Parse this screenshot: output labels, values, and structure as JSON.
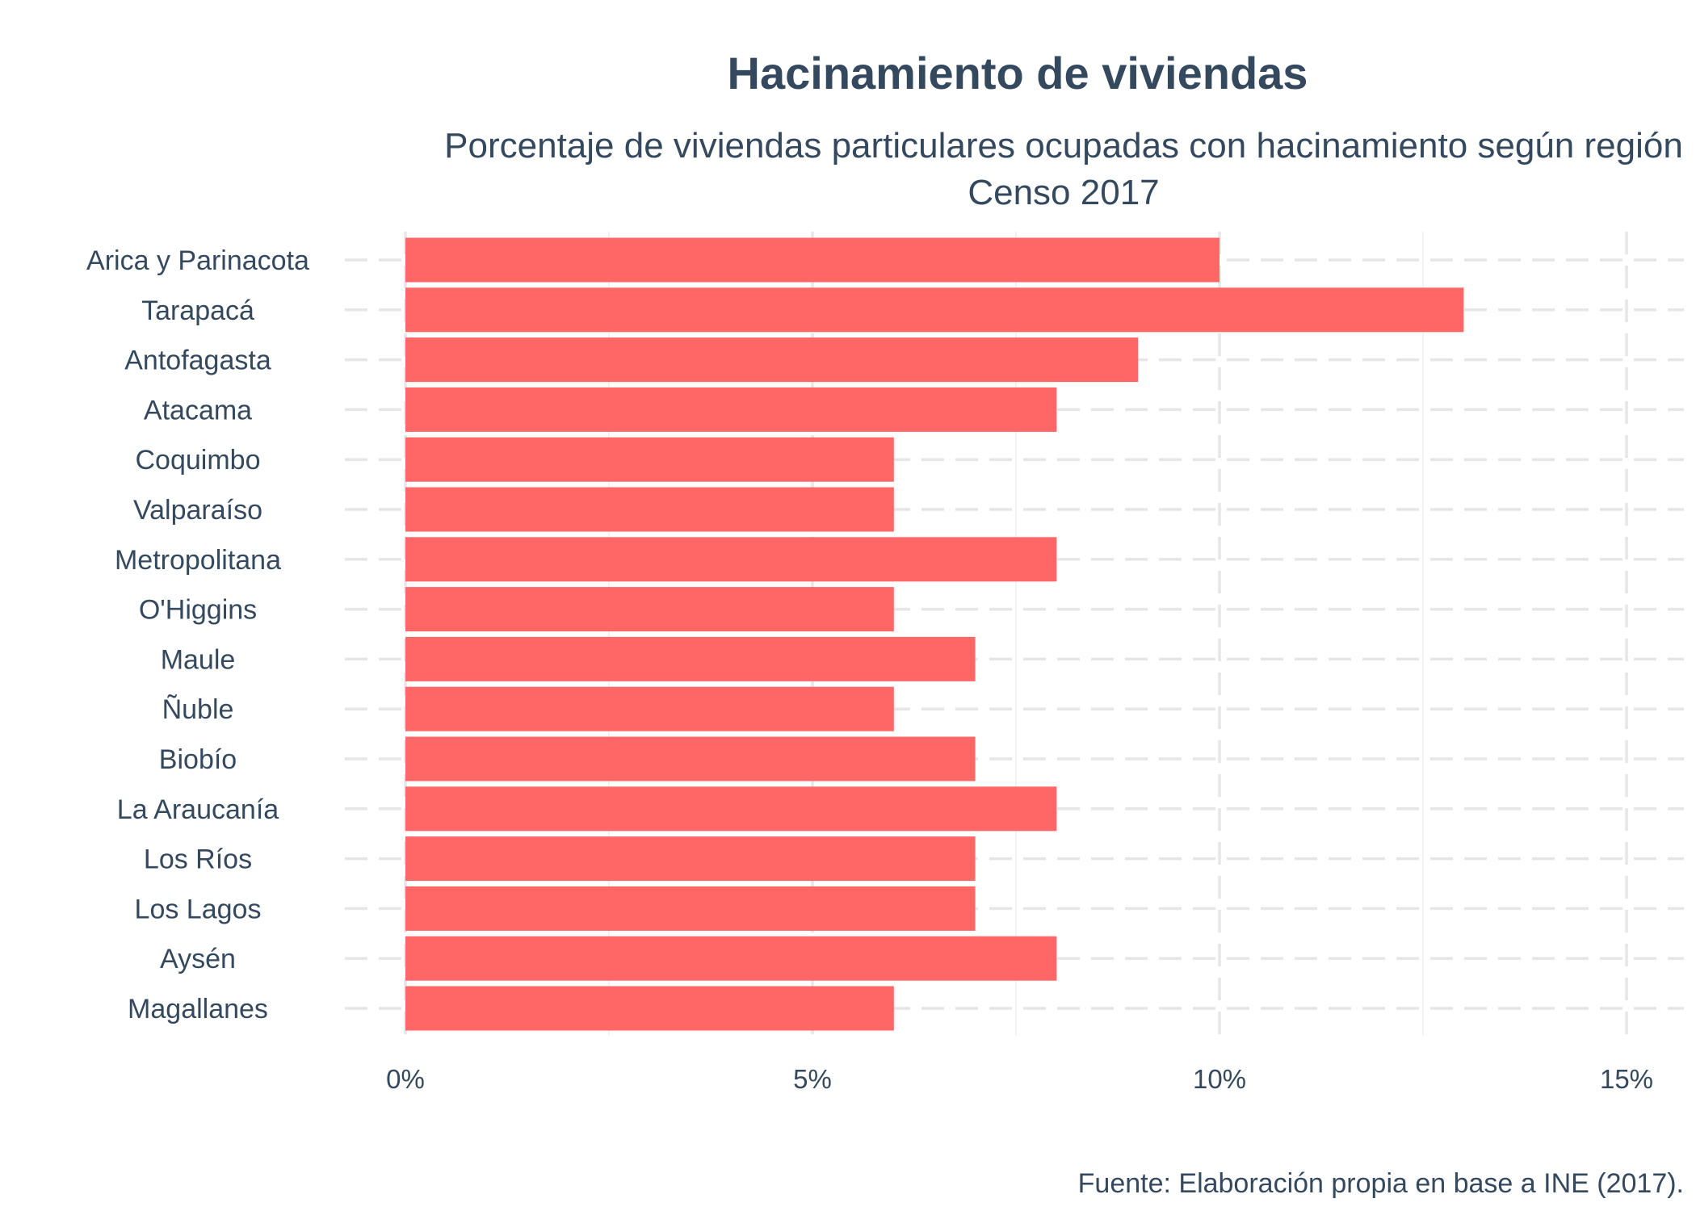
{
  "chart_data": {
    "type": "bar",
    "orientation": "horizontal",
    "title": "Hacinamiento de viviendas",
    "subtitle_lines": [
      "Porcentaje de viviendas particulares ocupadas con hacinamiento según región",
      "Censo 2017"
    ],
    "caption": "Fuente: Elaboración propia en base a INE (2017).",
    "categories": [
      "Arica y Parinacota",
      "Tarapacá",
      "Antofagasta",
      "Atacama",
      "Coquimbo",
      "Valparaíso",
      "Metropolitana",
      "O'Higgins",
      "Maule",
      "Ñuble",
      "Biobío",
      "La Araucanía",
      "Los Ríos",
      "Los Lagos",
      "Aysén",
      "Magallanes"
    ],
    "values": [
      10,
      13,
      9,
      8,
      6,
      6,
      8,
      6,
      7,
      6,
      7,
      8,
      7,
      7,
      8,
      6
    ],
    "unit": "%",
    "xlim": [
      0,
      15.6
    ],
    "x_ticks": [
      0,
      5,
      10,
      15
    ],
    "x_tick_labels": [
      "0%",
      "5%",
      "10%",
      "15%"
    ],
    "xlabel": "",
    "ylabel": "",
    "bar_color": "#ff6666",
    "grid": true,
    "legend": "none"
  },
  "colors": {
    "text": "#34495e",
    "grid": "#e6e6e6",
    "background": "#ffffff"
  }
}
